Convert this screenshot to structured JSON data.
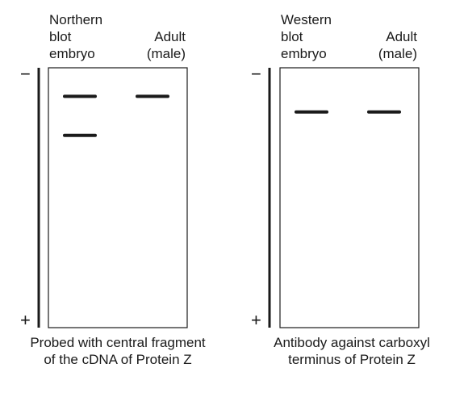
{
  "panels": [
    {
      "id": "northern",
      "title": "Northern\nblot",
      "lane_labels": [
        "embryo",
        "Adult\n(male)"
      ],
      "bands": [
        {
          "lane": 0,
          "rel": 0.11
        },
        {
          "lane": 1,
          "rel": 0.11
        },
        {
          "lane": 0,
          "rel": 0.26
        }
      ],
      "caption": "Probed with central fragment\nof the cDNA of Protein Z",
      "minus_sign": "−",
      "plus_sign": "+"
    },
    {
      "id": "western",
      "title": "Western\nblot",
      "lane_labels": [
        "embryo",
        "Adult\n(male)"
      ],
      "bands": [
        {
          "lane": 0,
          "rel": 0.17
        },
        {
          "lane": 1,
          "rel": 0.17
        }
      ],
      "caption": "Antibody against carboxyl\nterminus of Protein Z",
      "minus_sign": "−",
      "plus_sign": "+"
    }
  ]
}
